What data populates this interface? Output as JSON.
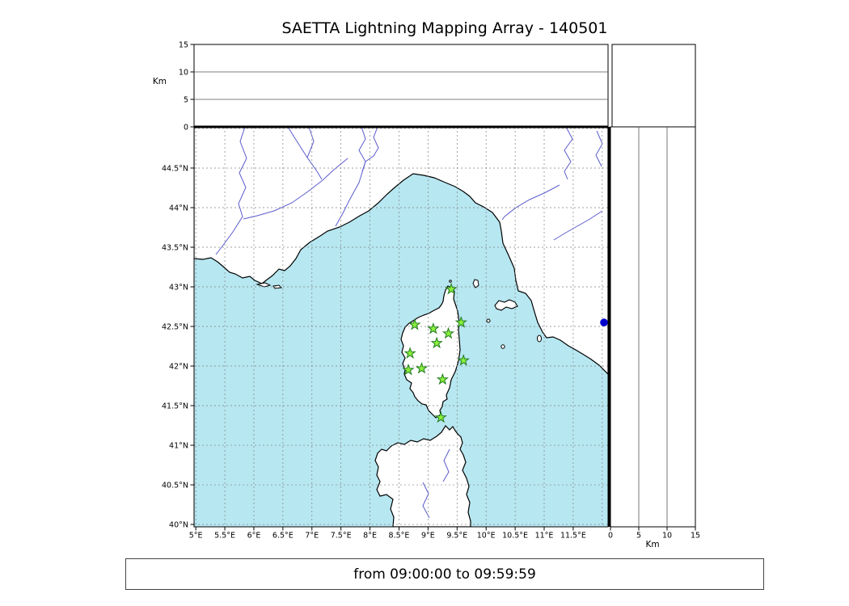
{
  "title": "SAETTA Lightning Mapping Array - 140501",
  "caption": "from 09:00:00 to 09:59:59",
  "axes": {
    "km_label_left": "Km",
    "km_label_bottom": "Km"
  },
  "chart_data": {
    "type": "scatter",
    "title": "SAETTA Lightning Mapping Array - 140501",
    "subtitle": "from 09:00:00 to 09:59:59",
    "description": "Lightning Mapping Array station map of Corsica region with altitude cross-section panels (top: altitude vs longitude, right: altitude vs latitude)",
    "main_panel": {
      "xlim_lon": [
        4.97,
        12.1
      ],
      "ylim_lat": [
        39.97,
        45.02
      ],
      "grid": "dashed, 0.5 degree",
      "lon_ticks": {
        "values": [
          5,
          5.5,
          6,
          6.5,
          7,
          7.5,
          8,
          8.5,
          9,
          9.5,
          10,
          10.5,
          11,
          11.5
        ],
        "labels": [
          "5°E",
          "5.5°E",
          "6°E",
          "6.5°E",
          "7°E",
          "7.5°E",
          "8°E",
          "8.5°E",
          "9°E",
          "9.5°E",
          "10°E",
          "10.5°E",
          "11°E",
          "11.5°E"
        ]
      },
      "lat_ticks": {
        "values": [
          40,
          40.5,
          41,
          41.5,
          42,
          42.5,
          43,
          43.5,
          44,
          44.5
        ],
        "labels": [
          "40°N",
          "40.5°N",
          "41°N",
          "41.5°N",
          "42°N",
          "42.5°N",
          "43°N",
          "43.5°N",
          "44°N",
          "44.5°N"
        ]
      },
      "grid_lon": [
        5,
        5.5,
        6,
        6.5,
        7,
        7.5,
        8,
        8.5,
        9,
        9.5,
        10,
        10.5,
        11,
        11.5,
        12
      ],
      "grid_lat": [
        40,
        40.5,
        41,
        41.5,
        42,
        42.5,
        43,
        43.5,
        44,
        44.5,
        45
      ]
    },
    "altitude_panels": {
      "axis_label": "Km",
      "range_km": [
        0,
        15
      ],
      "ticks": {
        "values": [
          0,
          5,
          10,
          15
        ],
        "labels": [
          "0",
          "5",
          "10",
          "15"
        ]
      },
      "inner_lines_km": [
        5,
        10
      ]
    },
    "stations": {
      "marker": "star",
      "fill_color": "#8af03c",
      "edge_color": "#1f7a1f",
      "lonlat": [
        [
          9.4,
          42.97
        ],
        [
          8.77,
          42.52
        ],
        [
          9.09,
          42.47
        ],
        [
          9.57,
          42.55
        ],
        [
          9.35,
          42.41
        ],
        [
          9.15,
          42.29
        ],
        [
          8.69,
          42.16
        ],
        [
          9.61,
          42.07
        ],
        [
          8.66,
          41.95
        ],
        [
          8.89,
          41.97
        ],
        [
          9.25,
          41.83
        ],
        [
          9.22,
          41.35
        ]
      ]
    },
    "sources": {
      "marker": "circle",
      "color": "#0000cd",
      "points": [
        {
          "lon": 12.03,
          "lat": 42.55
        }
      ]
    },
    "colors": {
      "sea": "#b7e7f1",
      "land": "#ffffff",
      "coast": "#000000",
      "rivers": "#5b5bcf",
      "grid": "#808080"
    }
  }
}
